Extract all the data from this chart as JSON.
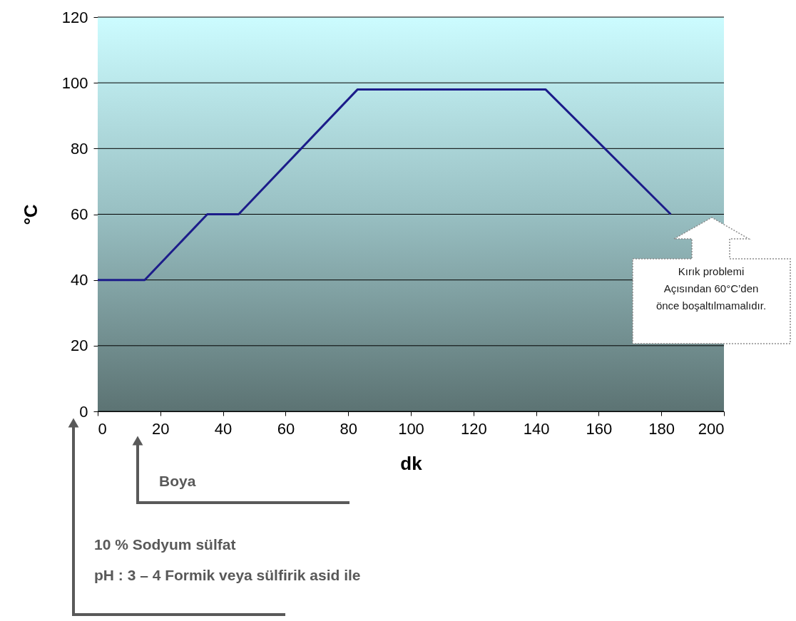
{
  "chart_data": {
    "type": "line",
    "xlabel": "dk",
    "ylabel": "°C",
    "x": [
      0,
      15,
      35,
      45,
      83,
      143,
      183
    ],
    "series": [
      {
        "color": "#1c1c8a",
        "values": [
          40,
          40,
          60,
          60,
          98,
          98,
          60
        ]
      }
    ],
    "xlim": [
      0,
      200
    ],
    "xticks": [
      0,
      20,
      40,
      60,
      80,
      100,
      120,
      140,
      160,
      180,
      200
    ],
    "ylim": [
      0,
      120
    ],
    "yticks": [
      0,
      20,
      40,
      60,
      80,
      100,
      120
    ],
    "grid": "y",
    "legend": false,
    "marker": "none",
    "line_style": "solid",
    "annotations": [
      "Kırık problemi\nAçısından 60°C’den\nönce boşaltılmamalıdır.",
      "Boya",
      "10 % Sodyum sülfat",
      "pH : 3 – 4 Formik veya sülfirik asid ile"
    ]
  }
}
